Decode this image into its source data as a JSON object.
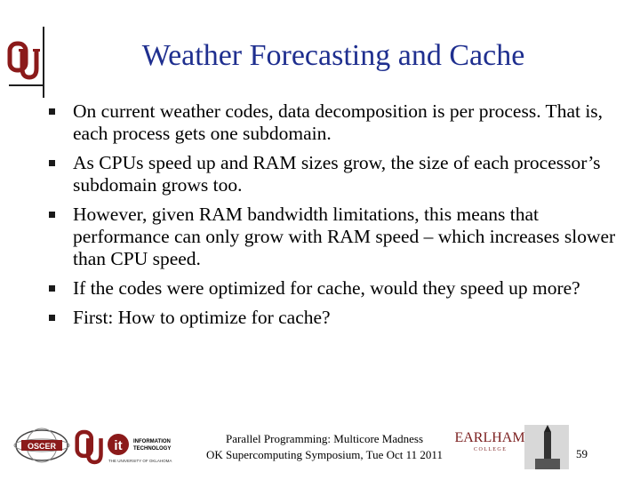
{
  "slide": {
    "title": "Weather Forecasting and Cache",
    "bullets": [
      "On current weather codes, data decomposition is per process. That is, each process gets one subdomain.",
      "As CPUs speed up and RAM sizes grow, the size of each processor’s subdomain grows too.",
      "However, given RAM bandwidth limitations, this means that performance can only grow with RAM speed – which increases slower than CPU speed.",
      "If the codes were optimized for cache, would they speed up more?",
      "First: How to optimize for cache?"
    ]
  },
  "footer": {
    "line1": "Parallel Programming: Multicore Madness",
    "line2": "OK Supercomputing Symposium, Tue Oct 11 2011",
    "page_number": "59"
  },
  "logos": {
    "oscer": "OSCER",
    "it_line1": "INFORMATION",
    "it_line2": "TECHNOLOGY",
    "it_sub": "THE UNIVERSITY OF OKLAHOMA",
    "earlham_main": "EARLHAM",
    "earlham_sub": "C O L L E G E"
  },
  "colors": {
    "title": "#1f2f8f",
    "ou_crimson": "#8b1a1a",
    "bullet": "#1a1a1a"
  }
}
